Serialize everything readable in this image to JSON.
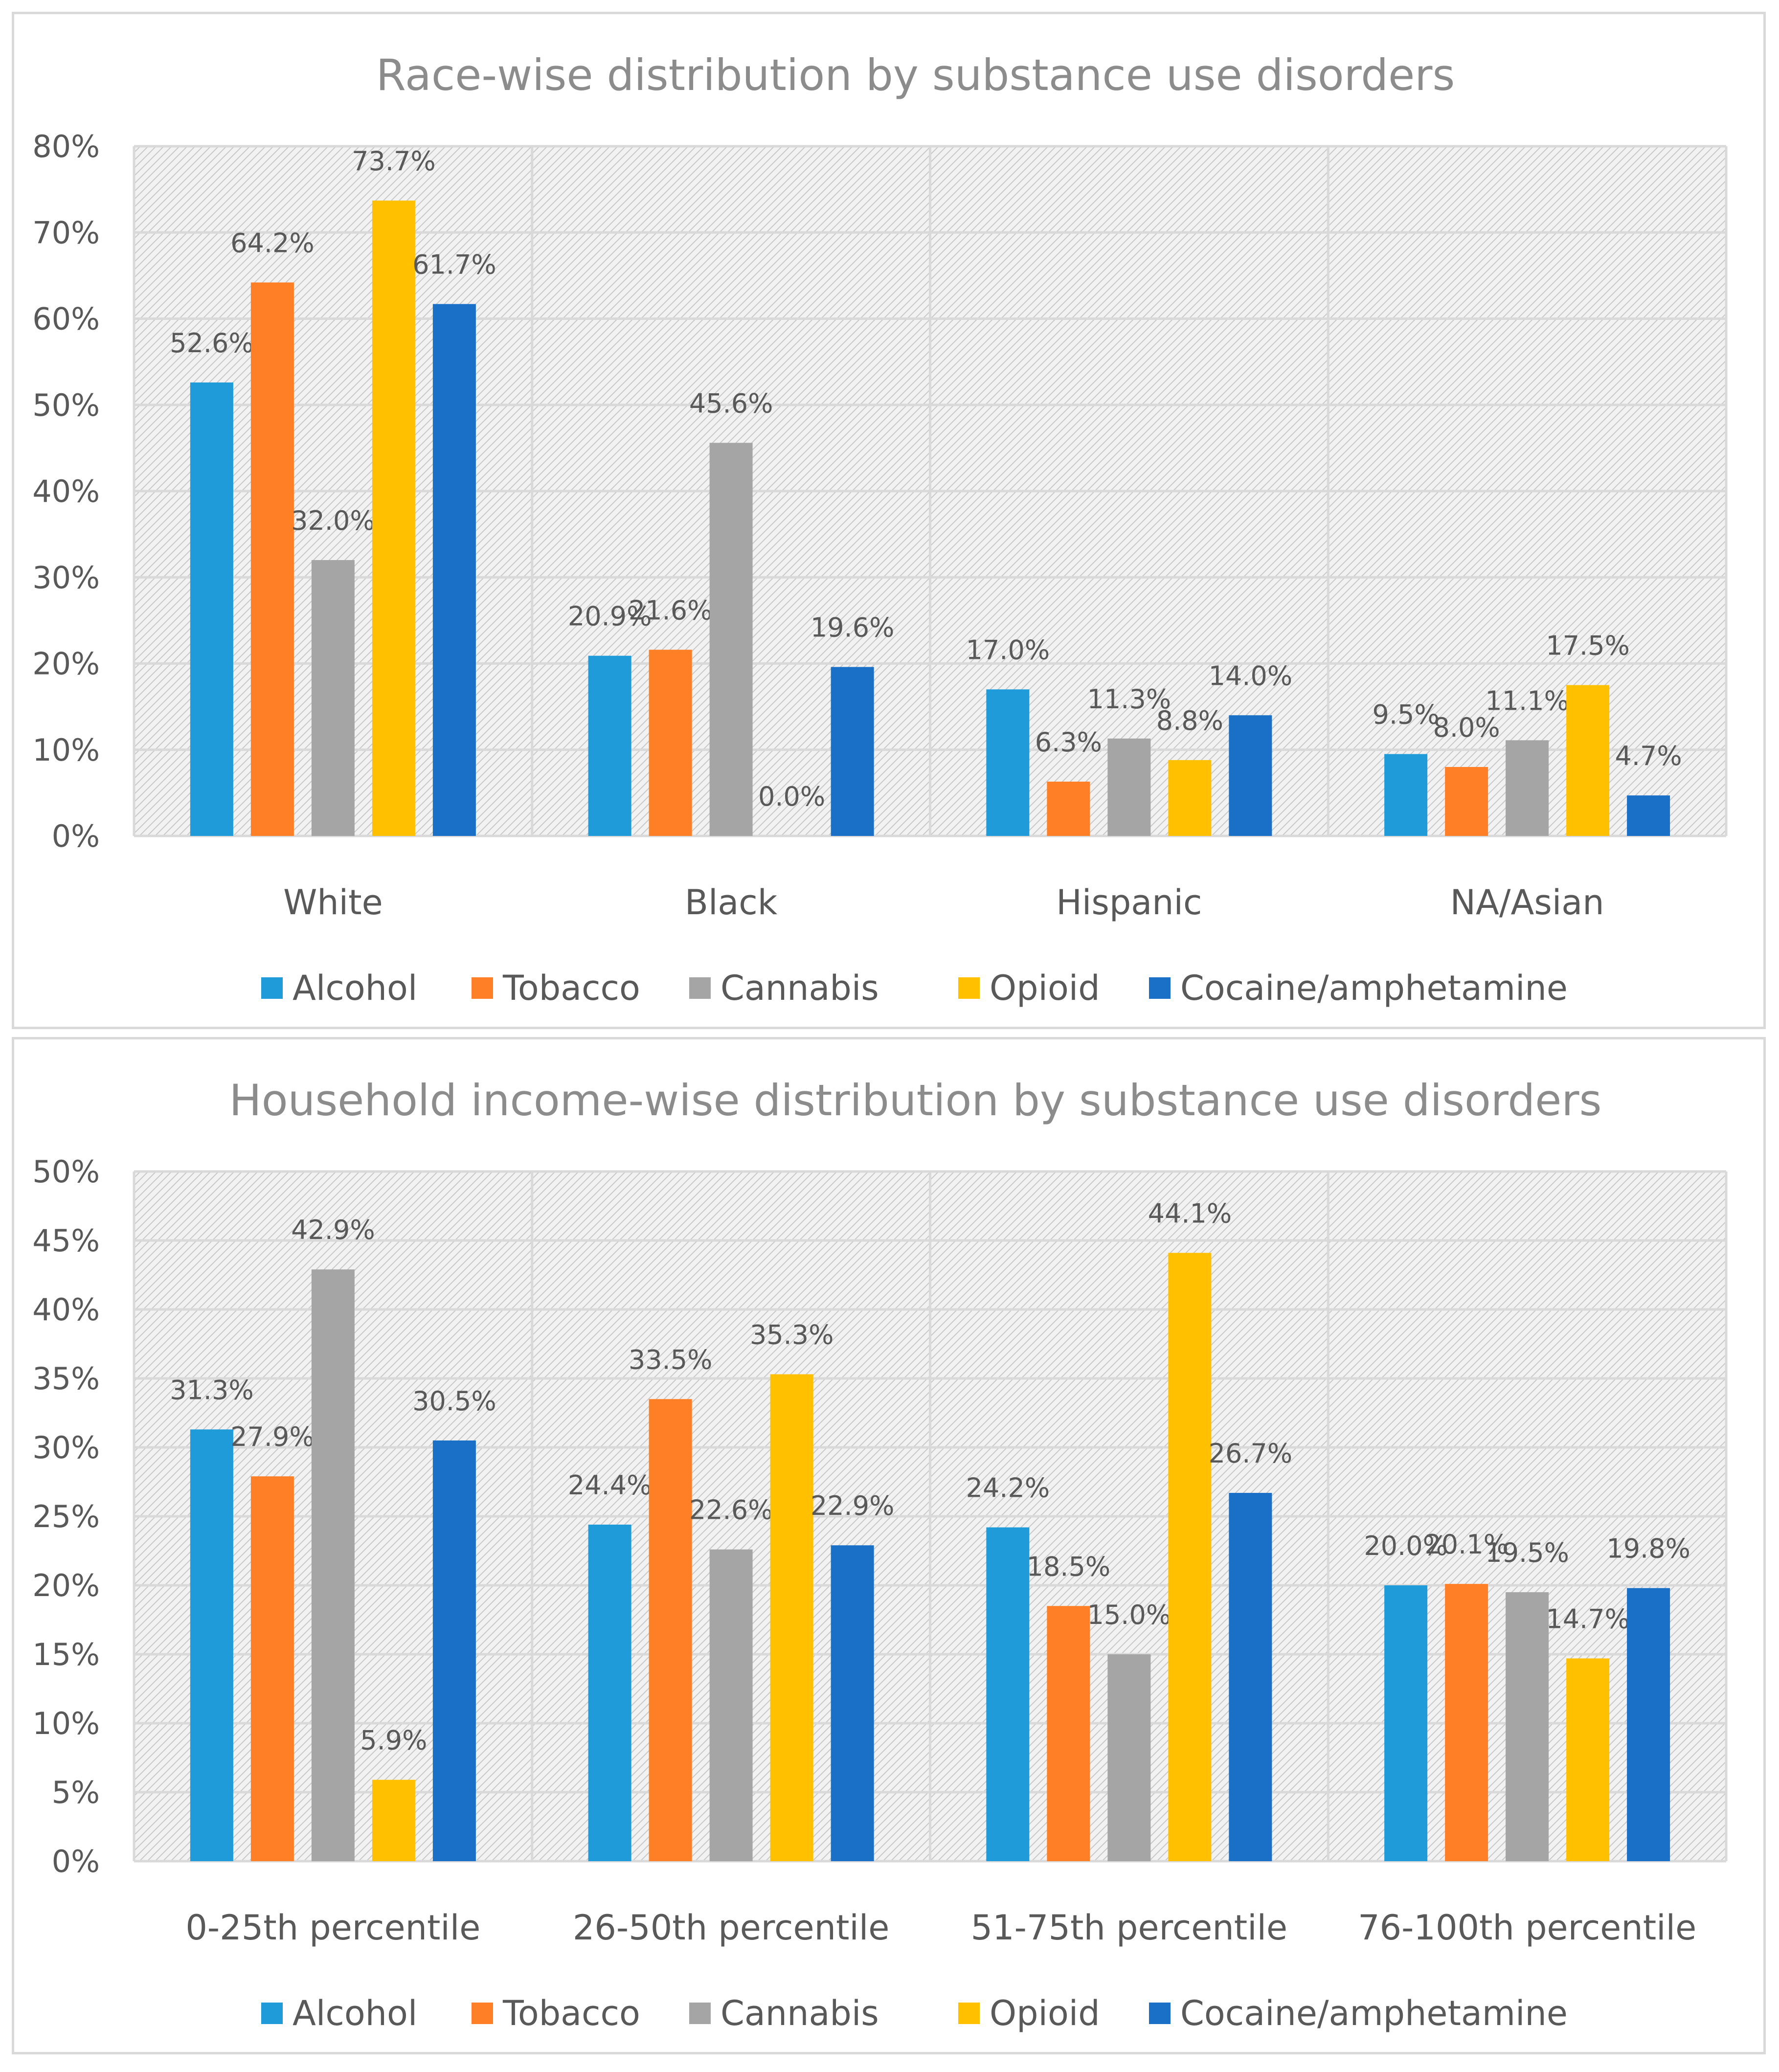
{
  "colors": {
    "Alcohol": "#1f9bd9",
    "Tobacco": "#ff7f27",
    "Cannabis": "#a5a5a5",
    "Opioid": "#ffc000",
    "Cocaine/amphetamine": "#1a6fc7"
  },
  "chart_data": [
    {
      "type": "bar",
      "title": "Race-wise distribution by substance use disorders",
      "categories": [
        "White",
        "Black",
        "Hispanic",
        "NA/Asian"
      ],
      "ylim": [
        0,
        80
      ],
      "yticks": [
        0,
        10,
        20,
        30,
        40,
        50,
        60,
        70,
        80
      ],
      "ytick_labels": [
        "0%",
        "10%",
        "20%",
        "30%",
        "40%",
        "50%",
        "60%",
        "70%",
        "80%"
      ],
      "grid": true,
      "legend_position": "bottom",
      "series": [
        {
          "name": "Alcohol",
          "values": [
            52.6,
            20.9,
            17.0,
            9.5
          ],
          "labels": [
            "52.6%",
            "20.9%",
            "17.0%",
            "9.5%"
          ]
        },
        {
          "name": "Tobacco",
          "values": [
            64.2,
            21.6,
            6.3,
            8.0
          ],
          "labels": [
            "64.2%",
            "21.6%",
            "6.3%",
            "8.0%"
          ]
        },
        {
          "name": "Cannabis",
          "values": [
            32.0,
            45.6,
            11.3,
            11.1
          ],
          "labels": [
            "32.0%",
            "45.6%",
            "11.3%",
            "11.1%"
          ]
        },
        {
          "name": "Opioid",
          "values": [
            73.7,
            0.0,
            8.8,
            17.5
          ],
          "labels": [
            "73.7%",
            "0.0%",
            "8.8%",
            "17.5%"
          ]
        },
        {
          "name": "Cocaine/amphetamine",
          "values": [
            61.7,
            19.6,
            14.0,
            4.7
          ],
          "labels": [
            "61.7%",
            "19.6%",
            "14.0%",
            "4.7%"
          ]
        }
      ]
    },
    {
      "type": "bar",
      "title": "Household income-wise distribution by substance use disorders",
      "categories": [
        "0-25th percentile",
        "26-50th percentile",
        "51-75th percentile",
        "76-100th percentile"
      ],
      "ylim": [
        0,
        50
      ],
      "yticks": [
        0,
        5,
        10,
        15,
        20,
        25,
        30,
        35,
        40,
        45,
        50
      ],
      "ytick_labels": [
        "0%",
        "5%",
        "10%",
        "15%",
        "20%",
        "25%",
        "30%",
        "35%",
        "40%",
        "45%",
        "50%"
      ],
      "grid": true,
      "legend_position": "bottom",
      "series": [
        {
          "name": "Alcohol",
          "values": [
            31.3,
            24.4,
            24.2,
            20.0
          ],
          "labels": [
            "31.3%",
            "24.4%",
            "24.2%",
            "20.0%"
          ]
        },
        {
          "name": "Tobacco",
          "values": [
            27.9,
            33.5,
            18.5,
            20.1
          ],
          "labels": [
            "27.9%",
            "33.5%",
            "18.5%",
            "20.1%"
          ]
        },
        {
          "name": "Cannabis",
          "values": [
            42.9,
            22.6,
            15.0,
            19.5
          ],
          "labels": [
            "42.9%",
            "22.6%",
            "15.0%",
            "19.5%"
          ]
        },
        {
          "name": "Opioid",
          "values": [
            5.9,
            35.3,
            44.1,
            14.7
          ],
          "labels": [
            "5.9%",
            "35.3%",
            "44.1%",
            "14.7%"
          ]
        },
        {
          "name": "Cocaine/amphetamine",
          "values": [
            30.5,
            22.9,
            26.7,
            19.8
          ],
          "labels": [
            "30.5%",
            "22.9%",
            "26.7%",
            "19.8%"
          ]
        }
      ]
    }
  ]
}
